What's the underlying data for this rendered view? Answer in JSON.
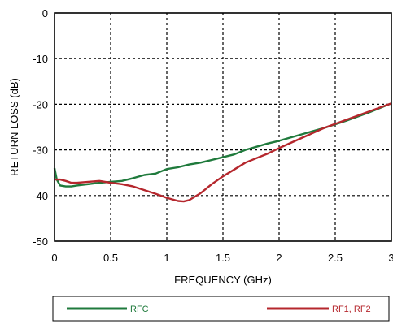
{
  "chart_data": {
    "type": "line",
    "xlabel": "FREQUENCY (GHz)",
    "ylabel": "RETURN LOSS (dB)",
    "xlim": [
      0,
      3
    ],
    "ylim": [
      -50,
      0
    ],
    "x_ticks": [
      0,
      0.5,
      1,
      1.5,
      2,
      2.5,
      3
    ],
    "x_tick_labels": [
      "0",
      "0.5",
      "1",
      "1.5",
      "2",
      "2.5",
      "3"
    ],
    "y_ticks": [
      0,
      -10,
      -20,
      -30,
      -40,
      -50
    ],
    "y_tick_labels": [
      "0",
      "-10",
      "-20",
      "-30",
      "-40",
      "-50"
    ],
    "grid": "dotted",
    "legend_position": "bottom",
    "series": [
      {
        "name": "RFC",
        "color": "#1f7a3c",
        "x": [
          0,
          0.02,
          0.05,
          0.1,
          0.15,
          0.2,
          0.3,
          0.4,
          0.5,
          0.6,
          0.7,
          0.8,
          0.9,
          1.0,
          1.1,
          1.2,
          1.3,
          1.4,
          1.5,
          1.6,
          1.7,
          1.8,
          1.9,
          2.0,
          2.2,
          2.4,
          2.6,
          2.8,
          3.0
        ],
        "y": [
          -34,
          -36.5,
          -37.8,
          -38,
          -38,
          -37.8,
          -37.5,
          -37.2,
          -37,
          -36.8,
          -36.2,
          -35.5,
          -35.2,
          -34.2,
          -33.8,
          -33.2,
          -32.8,
          -32.2,
          -31.6,
          -31,
          -30,
          -29.3,
          -28.6,
          -28,
          -26.6,
          -25.2,
          -23.6,
          -21.8,
          -19.8
        ]
      },
      {
        "name": "RF1, RF2",
        "color": "#b5272d",
        "x": [
          0,
          0.05,
          0.1,
          0.15,
          0.2,
          0.3,
          0.4,
          0.5,
          0.6,
          0.7,
          0.8,
          0.9,
          1.0,
          1.1,
          1.15,
          1.2,
          1.3,
          1.4,
          1.5,
          1.6,
          1.7,
          1.8,
          1.9,
          2.0,
          2.2,
          2.4,
          2.6,
          2.8,
          3.0
        ],
        "y": [
          -36.5,
          -36.5,
          -36.8,
          -37.2,
          -37.2,
          -37,
          -36.8,
          -37.2,
          -37.5,
          -38,
          -38.8,
          -39.6,
          -40.5,
          -41.2,
          -41.3,
          -41,
          -39.5,
          -37.5,
          -35.8,
          -34.3,
          -32.8,
          -31.8,
          -30.8,
          -29.6,
          -27.4,
          -25.2,
          -23.4,
          -21.6,
          -19.8
        ]
      }
    ]
  }
}
